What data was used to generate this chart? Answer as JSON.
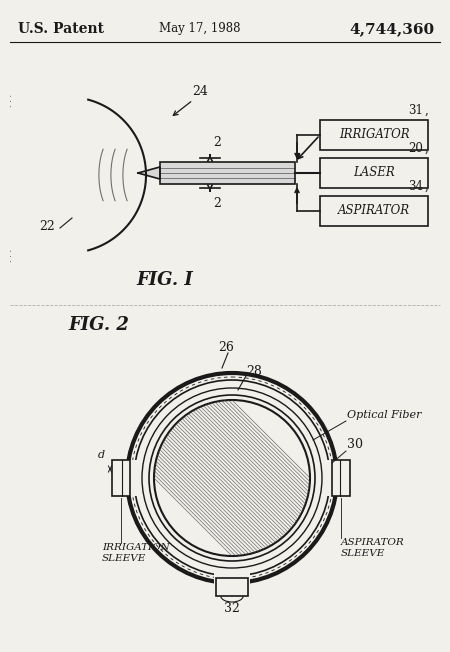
{
  "bg_color": "#f2f0eb",
  "line_color": "#1a1a1a",
  "title_left": "U.S. Patent",
  "title_mid": "May 17, 1988",
  "title_right": "4,744,360",
  "fig1_label": "FIG. I",
  "fig2_label": "FIG. 2",
  "boxes": [
    {
      "label": "IRRIGATOR",
      "num": "31"
    },
    {
      "label": "LASER",
      "num": "20"
    },
    {
      "label": "ASPIRATOR",
      "num": "34"
    }
  ]
}
